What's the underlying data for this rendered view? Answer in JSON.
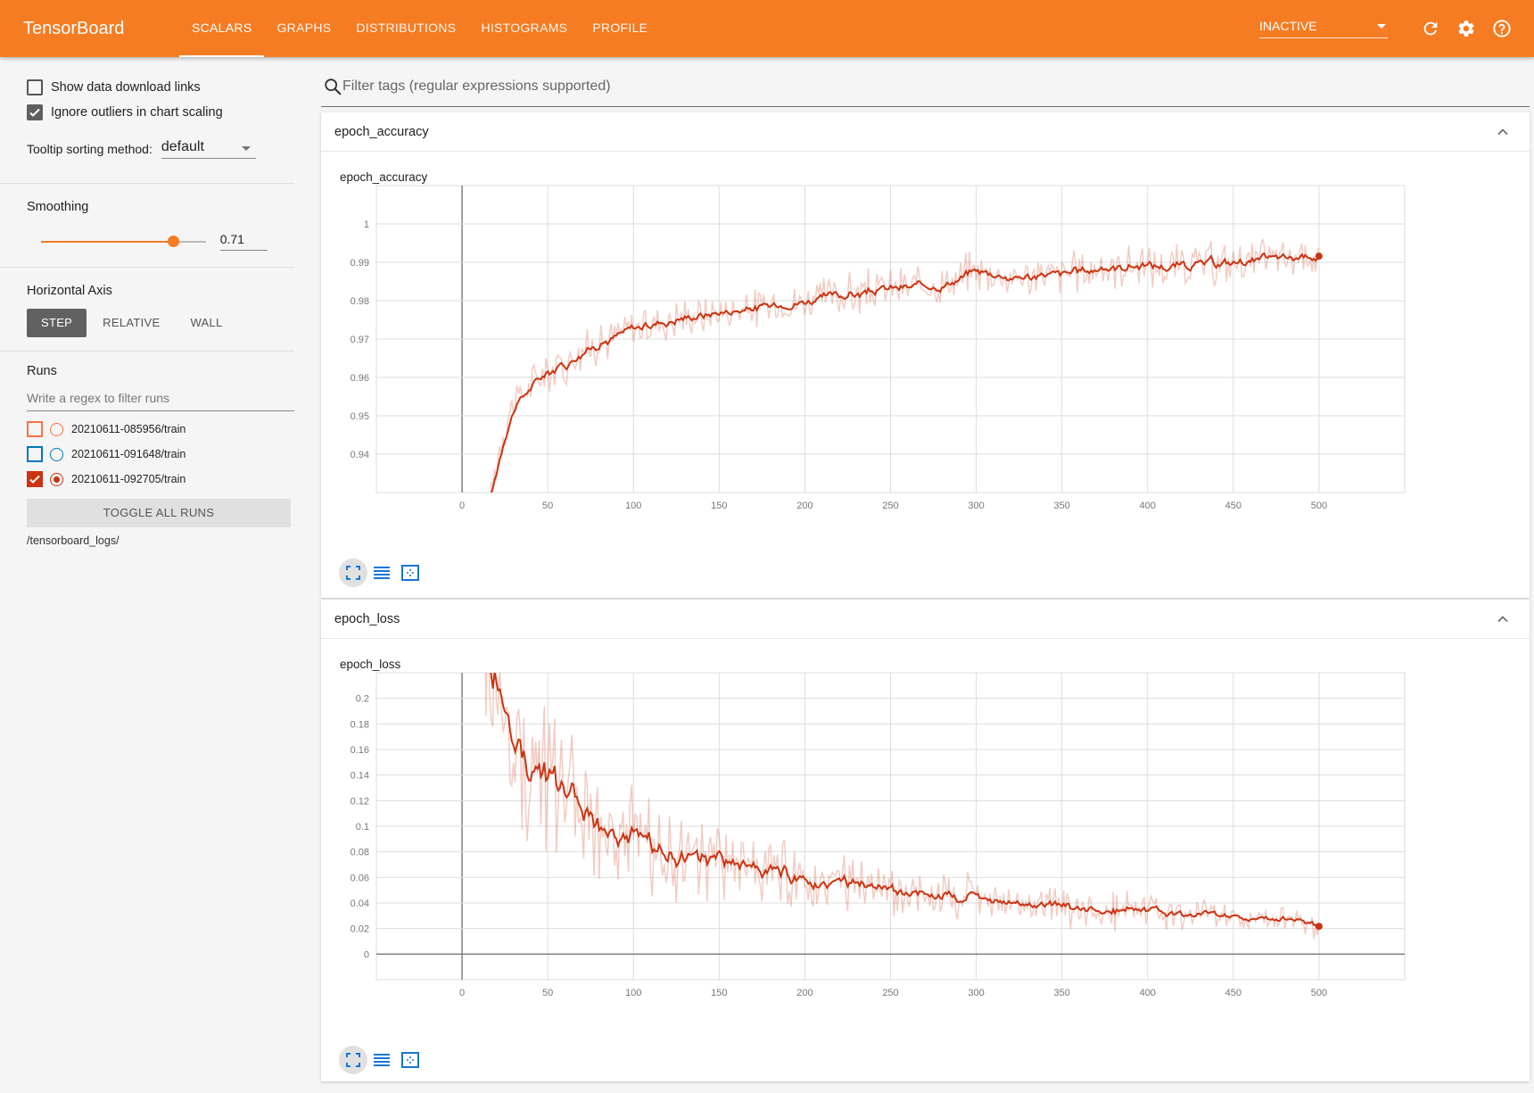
{
  "app": {
    "title": "TensorBoard",
    "tabs": [
      "SCALARS",
      "GRAPHS",
      "DISTRIBUTIONS",
      "HISTOGRAMS",
      "PROFILE"
    ],
    "active_tab": "SCALARS",
    "status_select": "INACTIVE",
    "icons": [
      "refresh-icon",
      "gear-icon",
      "help-icon"
    ]
  },
  "sidebar": {
    "show_download_links": "Show data download links",
    "ignore_outliers": "Ignore outliers in chart scaling",
    "tooltip_label": "Tooltip sorting method:",
    "tooltip_value": "default",
    "smoothing_label": "Smoothing",
    "smoothing_value": "0.71",
    "smoothing_fraction": 0.71,
    "horizontal_axis_label": "Horizontal Axis",
    "axis_buttons": [
      "STEP",
      "RELATIVE",
      "WALL"
    ],
    "runs_label": "Runs",
    "runs_filter_placeholder": "Write a regex to filter runs",
    "runs": [
      {
        "name": "20210611-085956/train",
        "color": "#ff7043",
        "checked": false
      },
      {
        "name": "20210611-091648/train",
        "color": "#0077bb",
        "checked": false
      },
      {
        "name": "20210611-092705/train",
        "color": "#cc3311",
        "checked": true
      }
    ],
    "toggle_all": "TOGGLE ALL RUNS",
    "logdir": "/tensorboard_logs/"
  },
  "main": {
    "filter_placeholder": "Filter tags (regular expressions supported)",
    "cards": [
      {
        "header": "epoch_accuracy",
        "chart_title": "epoch_accuracy"
      },
      {
        "header": "epoch_loss",
        "chart_title": "epoch_loss"
      }
    ]
  },
  "chart_data": [
    {
      "type": "line",
      "title": "epoch_accuracy",
      "color": "#cc3311",
      "x_ticks": [
        0,
        50,
        100,
        150,
        200,
        250,
        300,
        350,
        400,
        450,
        500
      ],
      "y_ticks": [
        0.94,
        0.95,
        0.96,
        0.97,
        0.98,
        0.99,
        1
      ],
      "xlim": [
        -50,
        550
      ],
      "ylim": [
        0.93,
        1.01
      ],
      "smoothed_key_points": {
        "x": [
          15,
          20,
          25,
          30,
          40,
          50,
          60,
          70,
          80,
          90,
          100,
          120,
          150,
          170,
          200,
          230,
          250,
          280,
          300,
          320,
          350,
          380,
          400,
          420,
          450,
          480,
          500
        ],
        "y": [
          0.925,
          0.938,
          0.948,
          0.953,
          0.958,
          0.962,
          0.964,
          0.967,
          0.969,
          0.971,
          0.973,
          0.975,
          0.977,
          0.978,
          0.98,
          0.982,
          0.983,
          0.984,
          0.988,
          0.986,
          0.987,
          0.989,
          0.989,
          0.989,
          0.99,
          0.991,
          0.992
        ]
      }
    },
    {
      "type": "line",
      "title": "epoch_loss",
      "color": "#cc3311",
      "x_ticks": [
        0,
        50,
        100,
        150,
        200,
        250,
        300,
        350,
        400,
        450,
        500
      ],
      "y_ticks": [
        0,
        0.02,
        0.04,
        0.06,
        0.08,
        0.1,
        0.12,
        0.14,
        0.16,
        0.18,
        0.2
      ],
      "xlim": [
        -50,
        550
      ],
      "ylim": [
        -0.02,
        0.22
      ],
      "smoothed_key_points": {
        "x": [
          12,
          18,
          25,
          30,
          40,
          50,
          60,
          70,
          80,
          90,
          100,
          120,
          150,
          170,
          200,
          230,
          250,
          280,
          300,
          320,
          350,
          380,
          400,
          420,
          450,
          480,
          500
        ],
        "y": [
          0.26,
          0.21,
          0.185,
          0.17,
          0.15,
          0.135,
          0.12,
          0.11,
          0.1,
          0.093,
          0.088,
          0.08,
          0.072,
          0.066,
          0.058,
          0.053,
          0.05,
          0.046,
          0.042,
          0.04,
          0.037,
          0.035,
          0.033,
          0.031,
          0.029,
          0.027,
          0.024
        ]
      }
    }
  ]
}
